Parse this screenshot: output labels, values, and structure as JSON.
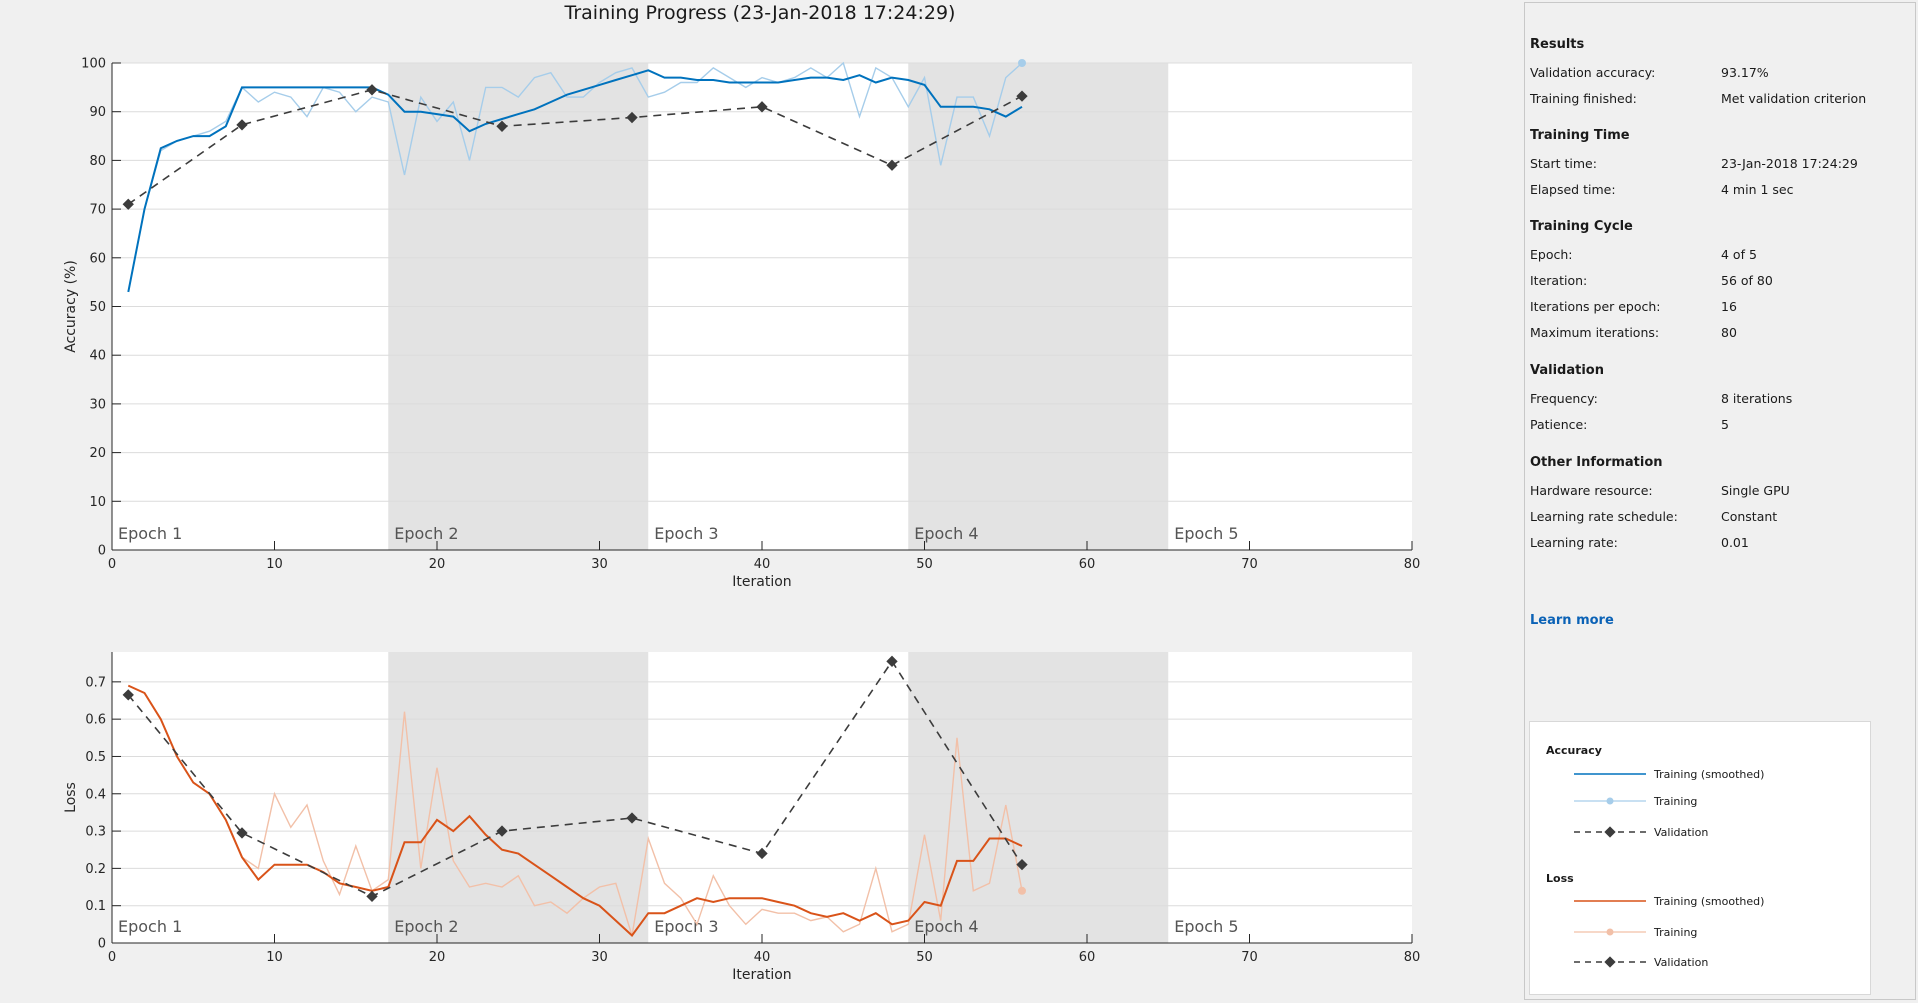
{
  "title": "Training Progress (23-Jan-2018 17:24:29)",
  "chart_data": [
    {
      "type": "line",
      "xlabel": "Iteration",
      "ylabel": "Accuracy (%)",
      "xlim": [
        0,
        80
      ],
      "ylim": [
        0,
        100
      ],
      "xticks": [
        0,
        10,
        20,
        30,
        40,
        50,
        60,
        70,
        80
      ],
      "yticks": [
        0,
        10,
        20,
        30,
        40,
        50,
        60,
        70,
        80,
        90,
        100
      ],
      "grid": true,
      "epoch_labels": [
        "Epoch 1",
        "Epoch 2",
        "Epoch 3",
        "Epoch 4",
        "Epoch 5"
      ],
      "epoch_bounds": [
        0,
        17,
        33,
        49,
        65,
        80
      ],
      "series": [
        {
          "name": "Training (smoothed)",
          "color": "#0072bd",
          "x": [
            1,
            2,
            3,
            4,
            5,
            6,
            7,
            8,
            9,
            10,
            11,
            12,
            13,
            14,
            15,
            16,
            17,
            18,
            19,
            20,
            21,
            22,
            23,
            24,
            25,
            26,
            27,
            28,
            29,
            30,
            31,
            32,
            33,
            34,
            35,
            36,
            37,
            38,
            39,
            40,
            41,
            42,
            43,
            44,
            45,
            46,
            47,
            48,
            49,
            50,
            51,
            52,
            53,
            54,
            55,
            56
          ],
          "y": [
            53,
            70,
            82.5,
            84,
            85,
            85,
            87,
            95,
            95,
            95,
            95,
            95,
            95,
            95,
            95,
            95,
            93.5,
            90,
            90,
            89.5,
            89,
            86,
            87.5,
            88.5,
            89.5,
            90.5,
            92,
            93.5,
            94.5,
            95.5,
            96.5,
            97.5,
            98.5,
            97,
            97,
            96.5,
            96.5,
            96,
            96,
            96,
            96,
            96.5,
            97,
            97,
            96.5,
            97.5,
            96,
            97,
            96.5,
            95.5,
            91,
            91,
            91,
            90.5,
            89,
            91
          ]
        },
        {
          "name": "Training",
          "color": "#a6cdea",
          "x": [
            1,
            2,
            3,
            4,
            5,
            6,
            7,
            8,
            9,
            10,
            11,
            12,
            13,
            14,
            15,
            16,
            17,
            18,
            19,
            20,
            21,
            22,
            23,
            24,
            25,
            26,
            27,
            28,
            29,
            30,
            31,
            32,
            33,
            34,
            35,
            36,
            37,
            38,
            39,
            40,
            41,
            42,
            43,
            44,
            45,
            46,
            47,
            48,
            49,
            50,
            51,
            52,
            53,
            54,
            55,
            56
          ],
          "y": [
            53,
            70,
            82,
            84,
            85,
            86,
            88,
            95,
            92,
            94,
            93,
            89,
            95,
            94,
            90,
            93,
            92,
            77,
            93,
            88,
            92,
            80,
            95,
            95,
            93,
            97,
            98,
            93,
            93,
            96,
            98,
            99,
            93,
            94,
            96,
            96,
            99,
            97,
            95,
            97,
            96,
            97,
            99,
            97,
            100,
            89,
            99,
            97,
            91,
            97,
            79,
            93,
            93,
            85,
            97,
            100
          ]
        },
        {
          "name": "Validation",
          "color": "#3c3c3c",
          "x": [
            1,
            8,
            16,
            24,
            32,
            40,
            48,
            56
          ],
          "y": [
            71,
            87.3,
            94.5,
            87,
            88.8,
            91,
            79,
            93.2
          ]
        }
      ]
    },
    {
      "type": "line",
      "xlabel": "Iteration",
      "ylabel": "Loss",
      "xlim": [
        0,
        80
      ],
      "ylim": [
        0,
        0.78
      ],
      "xticks": [
        0,
        10,
        20,
        30,
        40,
        50,
        60,
        70,
        80
      ],
      "yticks": [
        0,
        0.1,
        0.2,
        0.3,
        0.4,
        0.5,
        0.6,
        0.7
      ],
      "grid": true,
      "epoch_labels": [
        "Epoch 1",
        "Epoch 2",
        "Epoch 3",
        "Epoch 4",
        "Epoch 5"
      ],
      "epoch_bounds": [
        0,
        17,
        33,
        49,
        65,
        80
      ],
      "series": [
        {
          "name": "Training (smoothed)",
          "color": "#d95319",
          "x": [
            1,
            2,
            3,
            4,
            5,
            6,
            7,
            8,
            9,
            10,
            11,
            12,
            13,
            14,
            15,
            16,
            17,
            18,
            19,
            20,
            21,
            22,
            23,
            24,
            25,
            26,
            27,
            28,
            29,
            30,
            31,
            32,
            33,
            34,
            35,
            36,
            37,
            38,
            39,
            40,
            41,
            42,
            43,
            44,
            45,
            46,
            47,
            48,
            49,
            50,
            51,
            52,
            53,
            54,
            55,
            56
          ],
          "y": [
            0.69,
            0.67,
            0.6,
            0.5,
            0.43,
            0.4,
            0.33,
            0.23,
            0.17,
            0.21,
            0.21,
            0.21,
            0.19,
            0.16,
            0.15,
            0.14,
            0.15,
            0.27,
            0.27,
            0.33,
            0.3,
            0.34,
            0.29,
            0.25,
            0.24,
            0.21,
            0.18,
            0.15,
            0.12,
            0.1,
            0.06,
            0.02,
            0.08,
            0.08,
            0.1,
            0.12,
            0.11,
            0.12,
            0.12,
            0.12,
            0.11,
            0.1,
            0.08,
            0.07,
            0.08,
            0.06,
            0.08,
            0.05,
            0.06,
            0.11,
            0.1,
            0.22,
            0.22,
            0.28,
            0.28,
            0.26
          ]
        },
        {
          "name": "Training",
          "color": "#f2c0a8",
          "x": [
            1,
            2,
            3,
            4,
            5,
            6,
            7,
            8,
            9,
            10,
            11,
            12,
            13,
            14,
            15,
            16,
            17,
            18,
            19,
            20,
            21,
            22,
            23,
            24,
            25,
            26,
            27,
            28,
            29,
            30,
            31,
            32,
            33,
            34,
            35,
            36,
            37,
            38,
            39,
            40,
            41,
            42,
            43,
            44,
            45,
            46,
            47,
            48,
            49,
            50,
            51,
            52,
            53,
            54,
            55,
            56
          ],
          "y": [
            0.69,
            0.67,
            0.6,
            0.5,
            0.43,
            0.4,
            0.33,
            0.23,
            0.2,
            0.4,
            0.31,
            0.37,
            0.22,
            0.13,
            0.26,
            0.14,
            0.17,
            0.62,
            0.2,
            0.47,
            0.22,
            0.15,
            0.16,
            0.15,
            0.18,
            0.1,
            0.11,
            0.08,
            0.12,
            0.15,
            0.16,
            0.02,
            0.28,
            0.16,
            0.12,
            0.05,
            0.18,
            0.1,
            0.05,
            0.09,
            0.08,
            0.08,
            0.06,
            0.07,
            0.03,
            0.05,
            0.2,
            0.03,
            0.05,
            0.29,
            0.06,
            0.55,
            0.14,
            0.16,
            0.37,
            0.14
          ]
        },
        {
          "name": "Validation",
          "color": "#3c3c3c",
          "x": [
            1,
            8,
            16,
            24,
            32,
            40,
            48,
            56
          ],
          "y": [
            0.665,
            0.295,
            0.125,
            0.3,
            0.335,
            0.24,
            0.755,
            0.21
          ]
        }
      ]
    }
  ],
  "panel": {
    "results": {
      "heading": "Results",
      "rows": [
        {
          "label": "Validation accuracy:",
          "value": "93.17%"
        },
        {
          "label": "Training finished:",
          "value": "Met validation criterion"
        }
      ]
    },
    "training_time": {
      "heading": "Training Time",
      "rows": [
        {
          "label": "Start time:",
          "value": "23-Jan-2018 17:24:29"
        },
        {
          "label": "Elapsed time:",
          "value": "4 min 1 sec"
        }
      ]
    },
    "training_cycle": {
      "heading": "Training Cycle",
      "rows": [
        {
          "label": "Epoch:",
          "value": "4 of 5"
        },
        {
          "label": "Iteration:",
          "value": "56 of 80"
        },
        {
          "label": "Iterations per epoch:",
          "value": "16"
        },
        {
          "label": "Maximum iterations:",
          "value": "80"
        }
      ]
    },
    "validation": {
      "heading": "Validation",
      "rows": [
        {
          "label": "Frequency:",
          "value": "8 iterations"
        },
        {
          "label": "Patience:",
          "value": "5"
        }
      ]
    },
    "other": {
      "heading": "Other Information",
      "rows": [
        {
          "label": "Hardware resource:",
          "value": "Single GPU"
        },
        {
          "label": "Learning rate schedule:",
          "value": "Constant"
        },
        {
          "label": "Learning rate:",
          "value": "0.01"
        }
      ]
    },
    "learn_more": "Learn more"
  },
  "legend": {
    "accuracy_heading": "Accuracy",
    "loss_heading": "Loss",
    "accuracy_items": [
      "Training (smoothed)",
      "Training",
      "Validation"
    ],
    "loss_items": [
      "Training (smoothed)",
      "Training",
      "Validation"
    ]
  },
  "colors": {
    "shade": "#e3e3e3",
    "axes_bg": "#ffffff",
    "grid": "#dcdcdc",
    "link": "#0b62b6"
  }
}
